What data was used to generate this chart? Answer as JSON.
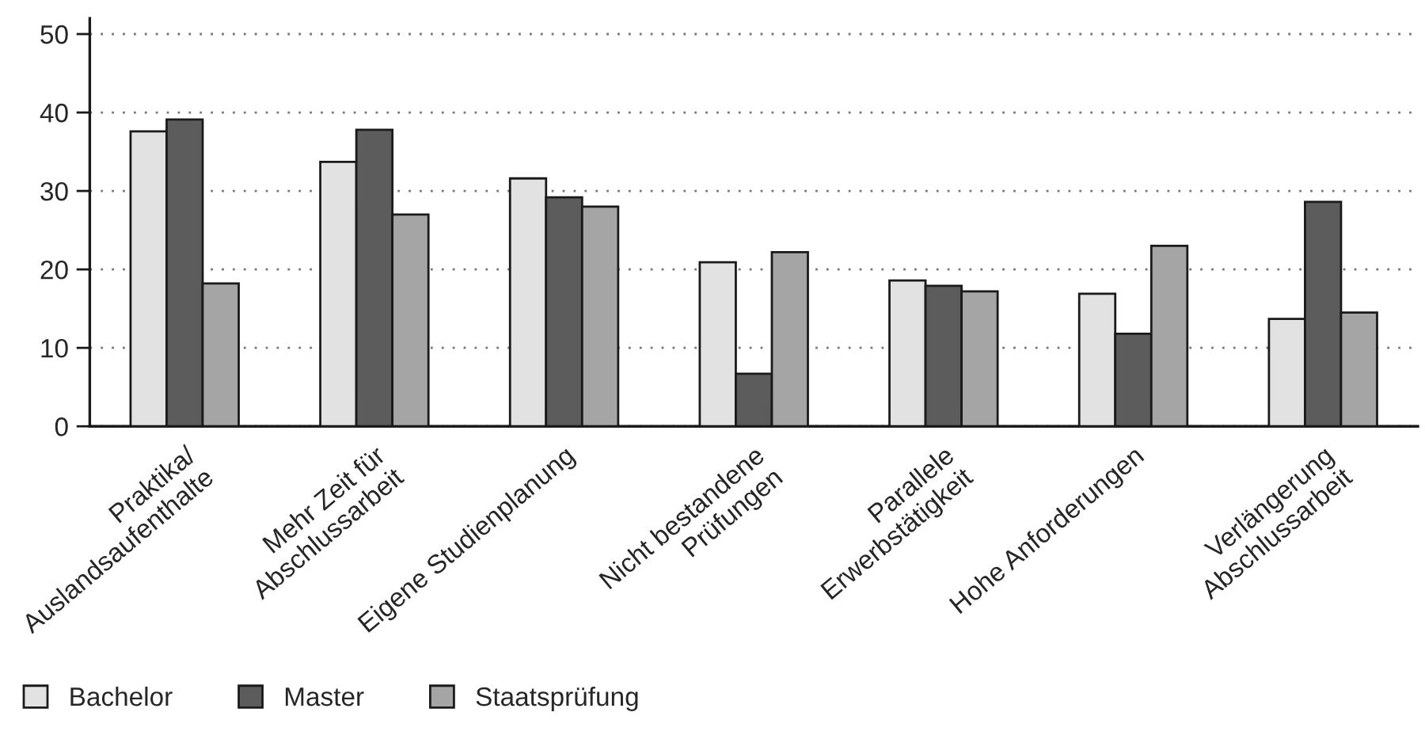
{
  "chart_data": {
    "type": "bar",
    "categories": [
      "Praktika/\nAuslandsaufenthalte",
      "Mehr Zeit für\nAbschlussarbeit",
      "Eigene Studienplanung",
      "Nicht bestandene\nPrüfungen",
      "Parallele\nErwerbstätigkeit",
      "Hohe Anforderungen",
      "Verlängerung\nAbschlussarbeit"
    ],
    "series": [
      {
        "name": "Bachelor",
        "color": "#e1e2e1",
        "values": [
          37.6,
          33.7,
          31.6,
          20.9,
          18.6,
          16.9,
          13.7
        ]
      },
      {
        "name": "Master",
        "color": "#5c5c5c",
        "values": [
          39.1,
          37.8,
          29.2,
          6.7,
          17.9,
          11.8,
          28.6
        ]
      },
      {
        "name": "Staatsprüfung",
        "color": "#a4a5a4",
        "values": [
          18.2,
          27.0,
          28.0,
          22.2,
          17.2,
          23.0,
          14.5
        ]
      }
    ],
    "ylim": [
      0,
      52
    ],
    "yticks": [
      0,
      10,
      20,
      30,
      40,
      50
    ],
    "grid": "y",
    "legend": "bottom left"
  }
}
